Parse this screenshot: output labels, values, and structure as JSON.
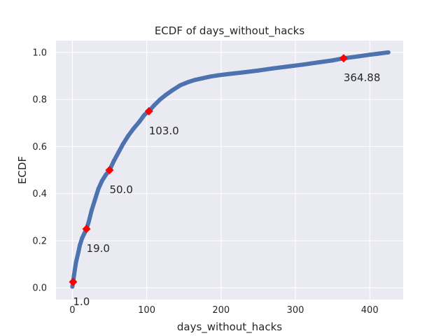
{
  "chart_data": {
    "type": "scatter",
    "title": "ECDF of days_without_hacks",
    "xlabel": "days_without_hacks",
    "ylabel": "ECDF",
    "xlim": [
      -22,
      445
    ],
    "ylim": [
      -0.05,
      1.05
    ],
    "xticks": [
      0,
      100,
      200,
      300,
      400
    ],
    "yticks": [
      0.0,
      0.2,
      0.4,
      0.6,
      0.8,
      1.0
    ],
    "xtick_labels": [
      "0",
      "100",
      "200",
      "300",
      "400"
    ],
    "ytick_labels": [
      "0.0",
      "0.2",
      "0.4",
      "0.6",
      "0.8",
      "1.0"
    ],
    "grid": true,
    "series": [
      {
        "color": "#4c72b0",
        "x": [
          0,
          1,
          3,
          5,
          8,
          10,
          13,
          16,
          19,
          22,
          26,
          30,
          35,
          40,
          45,
          50,
          56,
          62,
          68,
          75,
          82,
          90,
          97,
          103,
          110,
          118,
          126,
          135,
          145,
          155,
          165,
          175,
          185,
          195,
          210,
          230,
          250,
          270,
          290,
          310,
          330,
          350,
          364.88,
          380,
          400,
          410,
          425
        ],
        "y": [
          0.005,
          0.025,
          0.07,
          0.11,
          0.15,
          0.18,
          0.21,
          0.23,
          0.25,
          0.28,
          0.33,
          0.37,
          0.42,
          0.455,
          0.48,
          0.5,
          0.54,
          0.575,
          0.61,
          0.645,
          0.675,
          0.705,
          0.735,
          0.75,
          0.775,
          0.8,
          0.82,
          0.84,
          0.86,
          0.873,
          0.883,
          0.89,
          0.897,
          0.902,
          0.908,
          0.915,
          0.923,
          0.932,
          0.94,
          0.948,
          0.957,
          0.966,
          0.975,
          0.981,
          0.99,
          0.994,
          1.0
        ]
      }
    ],
    "markers": {
      "color": "#ff0000",
      "points": [
        {
          "x": 1.0,
          "y": 0.025,
          "label": "1.0"
        },
        {
          "x": 19.0,
          "y": 0.25,
          "label": "19.0"
        },
        {
          "x": 50.0,
          "y": 0.5,
          "label": "50.0"
        },
        {
          "x": 103.0,
          "y": 0.75,
          "label": "103.0"
        },
        {
          "x": 364.88,
          "y": 0.975,
          "label": "364.88"
        }
      ]
    }
  }
}
